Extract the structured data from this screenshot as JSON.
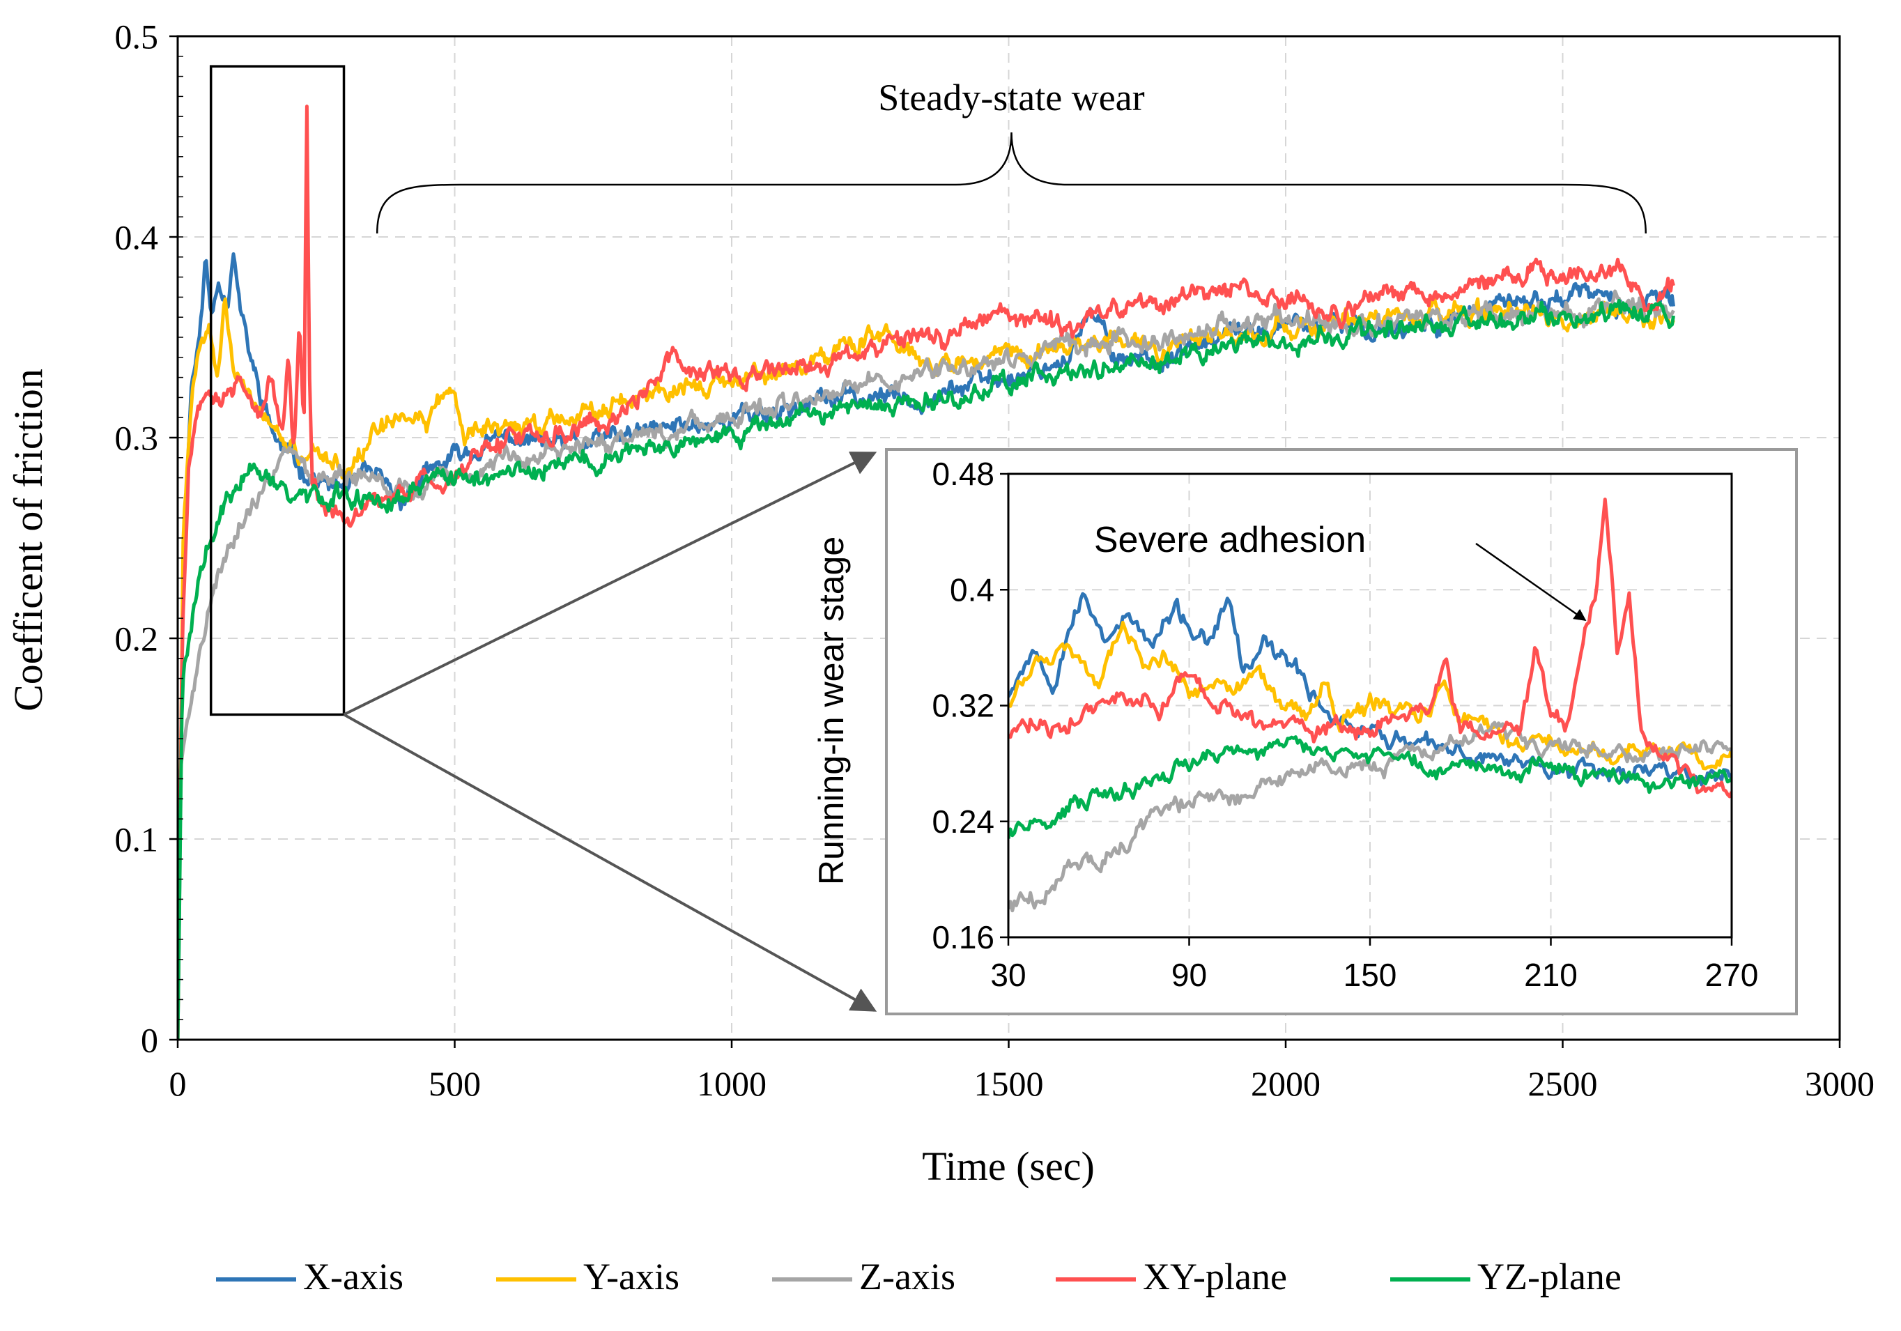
{
  "chart_data": [
    {
      "type": "line",
      "role": "main",
      "title": "",
      "xlabel": "Time (sec)",
      "ylabel": "Coefficent of friction",
      "xlim": [
        0,
        3000
      ],
      "ylim": [
        0,
        0.5
      ],
      "x_ticks": [
        0,
        500,
        1000,
        1500,
        2000,
        2500,
        3000
      ],
      "x_tick_labels": [
        "0",
        "500",
        "1000",
        "1500",
        "2000",
        "2500",
        "3000"
      ],
      "y_ticks": [
        0,
        0.1,
        0.2,
        0.3,
        0.4,
        0.5
      ],
      "y_tick_labels": [
        "0",
        "0.1",
        "0.2",
        "0.3",
        "0.4",
        "0.5"
      ],
      "grid": true,
      "legend_position": "bottom",
      "annotations": {
        "steady_state": "Steady-state wear",
        "steady_range": [
          360,
          2650
        ]
      },
      "zoom_box": {
        "x": [
          60,
          300
        ],
        "y": [
          0.162,
          0.485
        ]
      },
      "series": [
        {
          "name": "X-axis",
          "color": "#2E75B6",
          "x": [
            0,
            10,
            25,
            40,
            50,
            60,
            75,
            90,
            100,
            115,
            130,
            150,
            175,
            200,
            225,
            250,
            275,
            300,
            350,
            400,
            450,
            500,
            600,
            700,
            800,
            900,
            1000,
            1100,
            1200,
            1300,
            1400,
            1500,
            1600,
            1650,
            1700,
            1800,
            1900,
            2000,
            2100,
            2200,
            2300,
            2400,
            2500,
            2550,
            2600,
            2700
          ],
          "y": [
            0.0,
            0.24,
            0.33,
            0.35,
            0.39,
            0.36,
            0.38,
            0.37,
            0.395,
            0.36,
            0.34,
            0.32,
            0.3,
            0.29,
            0.285,
            0.28,
            0.275,
            0.275,
            0.28,
            0.27,
            0.28,
            0.29,
            0.3,
            0.295,
            0.3,
            0.305,
            0.31,
            0.315,
            0.32,
            0.32,
            0.325,
            0.33,
            0.34,
            0.36,
            0.34,
            0.34,
            0.35,
            0.355,
            0.355,
            0.355,
            0.36,
            0.365,
            0.37,
            0.372,
            0.365,
            0.368
          ]
        },
        {
          "name": "Y-axis",
          "color": "#FFC000",
          "x": [
            0,
            10,
            25,
            40,
            55,
            70,
            85,
            100,
            120,
            150,
            175,
            200,
            225,
            250,
            275,
            300,
            350,
            400,
            450,
            480,
            500,
            520,
            600,
            700,
            800,
            900,
            1000,
            1100,
            1200,
            1270,
            1300,
            1400,
            1500,
            1600,
            1700,
            1800,
            1900,
            2000,
            2100,
            2200,
            2300,
            2400,
            2500,
            2600,
            2700
          ],
          "y": [
            0.0,
            0.25,
            0.32,
            0.34,
            0.36,
            0.33,
            0.37,
            0.34,
            0.33,
            0.31,
            0.3,
            0.295,
            0.29,
            0.29,
            0.288,
            0.288,
            0.3,
            0.305,
            0.31,
            0.322,
            0.32,
            0.3,
            0.305,
            0.31,
            0.32,
            0.325,
            0.33,
            0.335,
            0.345,
            0.35,
            0.34,
            0.335,
            0.34,
            0.345,
            0.35,
            0.345,
            0.35,
            0.355,
            0.355,
            0.36,
            0.36,
            0.36,
            0.36,
            0.362,
            0.362
          ]
        },
        {
          "name": "Z-axis",
          "color": "#A5A5A5",
          "x": [
            0,
            5,
            20,
            40,
            60,
            80,
            100,
            120,
            140,
            160,
            180,
            200,
            225,
            250,
            275,
            300,
            350,
            400,
            500,
            600,
            700,
            800,
            900,
            1000,
            1100,
            1200,
            1300,
            1400,
            1500,
            1600,
            1700,
            1800,
            1900,
            2000,
            2100,
            2200,
            2300,
            2400,
            2500,
            2600,
            2700
          ],
          "y": [
            0.0,
            0.14,
            0.16,
            0.19,
            0.22,
            0.24,
            0.25,
            0.26,
            0.27,
            0.28,
            0.29,
            0.295,
            0.29,
            0.285,
            0.285,
            0.282,
            0.28,
            0.275,
            0.285,
            0.29,
            0.295,
            0.3,
            0.305,
            0.31,
            0.315,
            0.325,
            0.33,
            0.335,
            0.34,
            0.345,
            0.35,
            0.35,
            0.355,
            0.36,
            0.355,
            0.36,
            0.36,
            0.36,
            0.36,
            0.365,
            0.365
          ]
        },
        {
          "name": "XY-plane",
          "color": "#FF5050",
          "x": [
            0,
            8,
            20,
            35,
            50,
            70,
            90,
            110,
            130,
            150,
            170,
            190,
            200,
            210,
            220,
            228,
            233,
            238,
            243,
            260,
            280,
            300,
            350,
            400,
            500,
            600,
            700,
            800,
            900,
            1000,
            1100,
            1200,
            1300,
            1400,
            1500,
            1600,
            1700,
            1800,
            1900,
            2000,
            2100,
            2200,
            2300,
            2400,
            2450,
            2500,
            2600,
            2650,
            2700
          ],
          "y": [
            0.0,
            0.2,
            0.28,
            0.31,
            0.32,
            0.32,
            0.32,
            0.33,
            0.32,
            0.31,
            0.33,
            0.3,
            0.34,
            0.29,
            0.36,
            0.3,
            0.47,
            0.33,
            0.28,
            0.265,
            0.262,
            0.26,
            0.27,
            0.275,
            0.28,
            0.3,
            0.305,
            0.31,
            0.34,
            0.33,
            0.335,
            0.34,
            0.345,
            0.355,
            0.36,
            0.355,
            0.365,
            0.37,
            0.375,
            0.37,
            0.36,
            0.37,
            0.37,
            0.38,
            0.385,
            0.38,
            0.385,
            0.37,
            0.378
          ]
        },
        {
          "name": "YZ-plane",
          "color": "#00B050",
          "x": [
            0,
            8,
            20,
            40,
            60,
            80,
            100,
            120,
            140,
            160,
            180,
            200,
            225,
            250,
            275,
            300,
            350,
            400,
            500,
            600,
            700,
            800,
            900,
            1000,
            1100,
            1200,
            1300,
            1400,
            1500,
            1600,
            1700,
            1800,
            1900,
            2000,
            2100,
            2200,
            2300,
            2400,
            2500,
            2600,
            2700
          ],
          "y": [
            0.0,
            0.18,
            0.2,
            0.23,
            0.25,
            0.26,
            0.27,
            0.28,
            0.285,
            0.28,
            0.275,
            0.273,
            0.27,
            0.27,
            0.27,
            0.272,
            0.27,
            0.272,
            0.277,
            0.282,
            0.287,
            0.292,
            0.298,
            0.303,
            0.308,
            0.313,
            0.317,
            0.322,
            0.327,
            0.332,
            0.336,
            0.34,
            0.344,
            0.348,
            0.352,
            0.355,
            0.356,
            0.358,
            0.36,
            0.362,
            0.364
          ]
        }
      ]
    },
    {
      "type": "line",
      "role": "inset",
      "title": "",
      "xlabel": "",
      "ylabel": "Running-in wear stage",
      "xlim": [
        30,
        270
      ],
      "ylim": [
        0.16,
        0.48
      ],
      "x_ticks": [
        30,
        90,
        150,
        210,
        270
      ],
      "x_tick_labels": [
        "30",
        "90",
        "150",
        "210",
        "270"
      ],
      "y_ticks": [
        0.16,
        0.24,
        0.32,
        0.4,
        0.48
      ],
      "y_tick_labels": [
        "0.16",
        "0.24",
        "0.32",
        "0.4",
        "0.48"
      ],
      "grid": true,
      "annotations": {
        "severe": "Severe adhesion"
      },
      "series": [
        {
          "name": "X-axis",
          "color": "#2E75B6",
          "x": [
            30,
            38,
            45,
            50,
            55,
            62,
            70,
            78,
            85,
            92,
            98,
            103,
            108,
            115,
            122,
            130,
            140,
            150,
            160,
            170,
            180,
            190,
            200,
            210,
            220,
            230,
            240,
            250,
            260,
            270
          ],
          "y": [
            0.33,
            0.36,
            0.34,
            0.38,
            0.395,
            0.37,
            0.38,
            0.36,
            0.385,
            0.37,
            0.36,
            0.395,
            0.34,
            0.36,
            0.35,
            0.33,
            0.31,
            0.305,
            0.295,
            0.29,
            0.285,
            0.285,
            0.282,
            0.28,
            0.278,
            0.278,
            0.275,
            0.275,
            0.272,
            0.272
          ]
        },
        {
          "name": "Y-axis",
          "color": "#FFC000",
          "x": [
            30,
            38,
            45,
            52,
            60,
            68,
            75,
            82,
            90,
            98,
            105,
            112,
            120,
            130,
            135,
            140,
            150,
            160,
            170,
            175,
            180,
            190,
            200,
            210,
            220,
            230,
            240,
            250,
            260,
            270
          ],
          "y": [
            0.32,
            0.345,
            0.35,
            0.36,
            0.34,
            0.37,
            0.34,
            0.355,
            0.33,
            0.345,
            0.33,
            0.34,
            0.32,
            0.31,
            0.335,
            0.31,
            0.32,
            0.325,
            0.31,
            0.34,
            0.31,
            0.305,
            0.295,
            0.295,
            0.29,
            0.29,
            0.29,
            0.288,
            0.288,
            0.29
          ]
        },
        {
          "name": "Z-axis",
          "color": "#A5A5A5",
          "x": [
            30,
            40,
            50,
            60,
            70,
            80,
            90,
            100,
            110,
            120,
            130,
            140,
            150,
            160,
            170,
            180,
            190,
            200,
            210,
            220,
            230,
            240,
            250,
            260,
            270
          ],
          "y": [
            0.18,
            0.19,
            0.205,
            0.215,
            0.225,
            0.245,
            0.25,
            0.255,
            0.26,
            0.27,
            0.275,
            0.275,
            0.28,
            0.285,
            0.29,
            0.295,
            0.3,
            0.295,
            0.295,
            0.29,
            0.29,
            0.288,
            0.288,
            0.288,
            0.288
          ]
        },
        {
          "name": "XY-plane",
          "color": "#FF5050",
          "x": [
            30,
            40,
            50,
            60,
            70,
            80,
            90,
            100,
            110,
            120,
            130,
            140,
            150,
            160,
            170,
            175,
            180,
            190,
            200,
            205,
            210,
            215,
            220,
            225,
            228,
            232,
            236,
            240,
            245,
            250,
            260,
            270
          ],
          "y": [
            0.3,
            0.31,
            0.305,
            0.32,
            0.325,
            0.32,
            0.34,
            0.32,
            0.31,
            0.3,
            0.3,
            0.31,
            0.3,
            0.32,
            0.33,
            0.355,
            0.3,
            0.3,
            0.3,
            0.36,
            0.31,
            0.3,
            0.35,
            0.4,
            0.47,
            0.36,
            0.4,
            0.3,
            0.285,
            0.28,
            0.265,
            0.262
          ]
        },
        {
          "name": "YZ-plane",
          "color": "#00B050",
          "x": [
            30,
            40,
            50,
            60,
            70,
            80,
            90,
            100,
            110,
            120,
            130,
            140,
            150,
            160,
            170,
            180,
            190,
            200,
            210,
            220,
            230,
            240,
            250,
            260,
            270
          ],
          "y": [
            0.23,
            0.24,
            0.25,
            0.255,
            0.265,
            0.27,
            0.28,
            0.285,
            0.29,
            0.295,
            0.29,
            0.285,
            0.288,
            0.285,
            0.28,
            0.278,
            0.275,
            0.275,
            0.273,
            0.272,
            0.27,
            0.27,
            0.27,
            0.27,
            0.27
          ]
        }
      ]
    }
  ]
}
